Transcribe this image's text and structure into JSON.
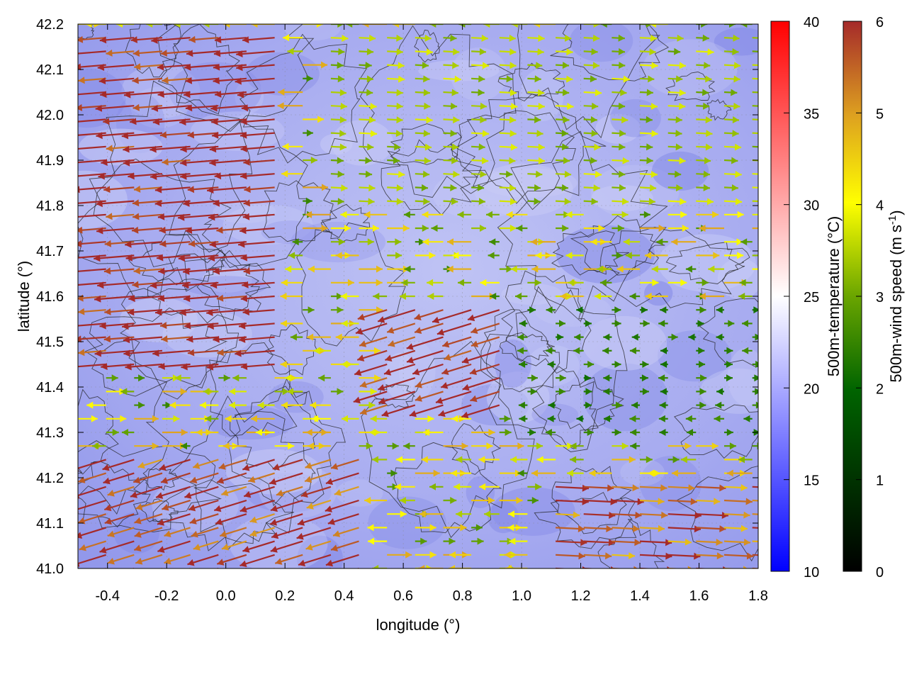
{
  "chart_data": {
    "type": "vector-field",
    "title": "",
    "xlabel": "longitude (°)",
    "ylabel": "latitude (°)",
    "xlim": [
      -0.5,
      1.8
    ],
    "ylim": [
      41.0,
      42.2
    ],
    "xticks": [
      "-0.4",
      "-0.2",
      "0.0",
      "0.2",
      "0.4",
      "0.6",
      "0.8",
      "1.0",
      "1.2",
      "1.4",
      "1.6",
      "1.8"
    ],
    "yticks": [
      "41.0",
      "41.1",
      "41.2",
      "41.3",
      "41.4",
      "41.5",
      "41.6",
      "41.7",
      "41.8",
      "41.9",
      "42.0",
      "42.1",
      "42.2"
    ],
    "grid": true,
    "background_field": {
      "name": "500m-temperature",
      "colorbar_label": "500m-temperature (°C)",
      "range": [
        10,
        40
      ],
      "ticks": [
        "10",
        "15",
        "20",
        "25",
        "30",
        "35",
        "40"
      ],
      "colormap": [
        "#0000ff",
        "#ffffff",
        "#ff0000"
      ],
      "approx_value": 18
    },
    "vector_field": {
      "name": "500m-wind speed",
      "colorbar_label": "500m-wind speed (m s-1)",
      "units": "m s-1",
      "range": [
        0,
        6
      ],
      "ticks": [
        "0",
        "1",
        "2",
        "3",
        "4",
        "5",
        "6"
      ],
      "colormap": [
        "#000000",
        "#006400",
        "#6aa500",
        "#ffff00",
        "#dda020",
        "#a52a2a"
      ],
      "regions": [
        {
          "lon": [
            -0.5,
            0.2
          ],
          "lat": [
            41.45,
            42.2
          ],
          "direction": "westward",
          "speed": 5.8
        },
        {
          "lon": [
            0.45,
            1.0
          ],
          "lat": [
            41.35,
            41.6
          ],
          "direction": "west-southwest",
          "speed": 5.9
        },
        {
          "lon": [
            -0.5,
            0.5
          ],
          "lat": [
            41.0,
            41.25
          ],
          "direction": "west-southwest",
          "speed": 5.2
        },
        {
          "lon": [
            1.1,
            1.8
          ],
          "lat": [
            41.0,
            41.2
          ],
          "direction": "eastward",
          "speed": 4.8
        },
        {
          "lon": [
            0.3,
            1.8
          ],
          "lat": [
            41.8,
            42.2
          ],
          "direction": "eastward",
          "speed": 2.6
        },
        {
          "lon": [
            1.0,
            1.8
          ],
          "lat": [
            41.3,
            41.6
          ],
          "direction": "variable",
          "speed": 1.5
        }
      ]
    },
    "contours": "terrain elevation isolines (black)"
  },
  "colorbar_temperature": {
    "label_main": "500m-temperature (°C)"
  },
  "colorbar_wind": {
    "label_main": "500m-wind speed (m s",
    "label_sup": "-1",
    "label_end": ")"
  }
}
